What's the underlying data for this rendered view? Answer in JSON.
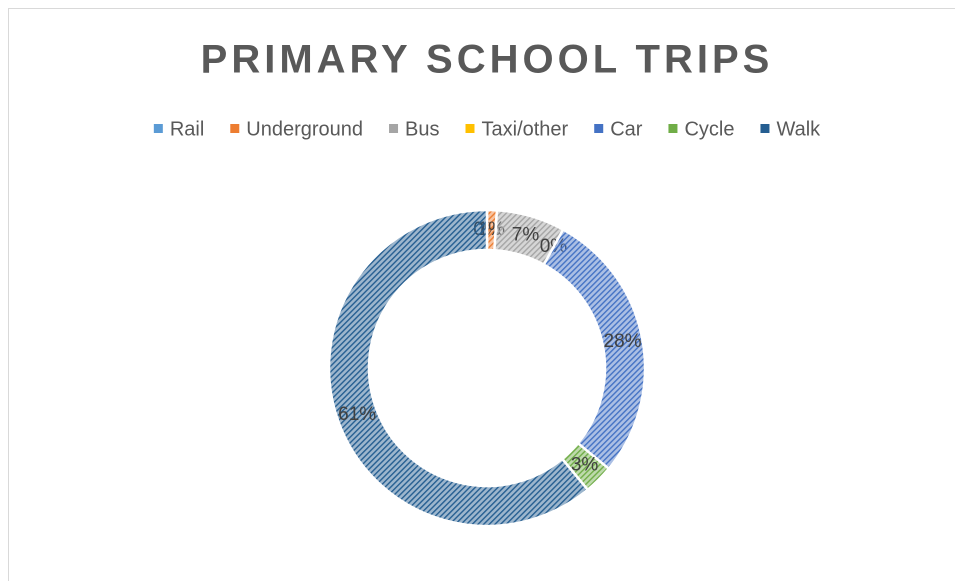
{
  "chart_data": {
    "type": "donut",
    "title": "PRIMARY SCHOOL TRIPS",
    "categories": [
      "Rail",
      "Underground",
      "Bus",
      "Taxi/other",
      "Car",
      "Cycle",
      "Walk"
    ],
    "values": [
      0,
      1,
      7,
      0,
      28,
      3,
      61
    ],
    "value_labels": [
      "0%",
      "1%",
      "7%",
      "0%",
      "28%",
      "3%",
      "61%"
    ],
    "colors": [
      "#5b9bd5",
      "#ed7d31",
      "#a5a5a5",
      "#ffc000",
      "#4472c4",
      "#70ad47",
      "#255e91"
    ],
    "legend": "top"
  }
}
